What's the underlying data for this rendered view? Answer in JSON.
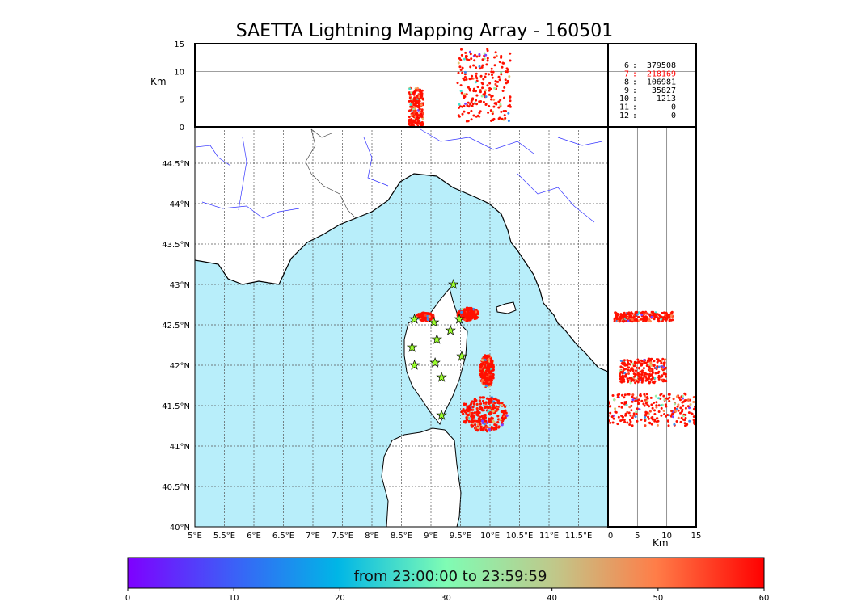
{
  "title": "SAETTA Lightning Mapping Array - 160501",
  "chart_data": {
    "type": "scatter",
    "map": {
      "xlabels": [
        "5°E",
        "5.5°E",
        "6°E",
        "6.5°E",
        "7°E",
        "7.5°E",
        "8°E",
        "8.5°E",
        "9°E",
        "9.5°E",
        "10°E",
        "10.5°E",
        "11°E",
        "11.5°E"
      ],
      "ylabels": [
        "40°N",
        "40.5°N",
        "41°N",
        "41.5°N",
        "42°N",
        "42.5°N",
        "43°N",
        "43.5°N",
        "44°N",
        "44.5°N"
      ],
      "lon_range": [
        5,
        12
      ],
      "lat_range": [
        40,
        44.95
      ],
      "land_color": "#ffffff",
      "sea_color": "#b8eefa",
      "stations": [
        [
          9.38,
          43.0
        ],
        [
          8.72,
          42.57
        ],
        [
          9.05,
          42.53
        ],
        [
          9.48,
          42.57
        ],
        [
          9.33,
          42.43
        ],
        [
          9.1,
          42.32
        ],
        [
          8.68,
          42.22
        ],
        [
          9.52,
          42.11
        ],
        [
          8.72,
          42.0
        ],
        [
          9.07,
          42.03
        ],
        [
          9.18,
          41.85
        ],
        [
          9.18,
          41.38
        ]
      ],
      "clusters": [
        {
          "lon": 8.9,
          "lat": 42.6,
          "rlon": 0.15,
          "rlat": 0.05
        },
        {
          "lon": 9.63,
          "lat": 42.63,
          "rlon": 0.18,
          "rlat": 0.08
        },
        {
          "lon": 9.95,
          "lat": 41.93,
          "rlon": 0.12,
          "rlat": 0.2
        },
        {
          "lon": 9.9,
          "lat": 41.4,
          "rlon": 0.4,
          "rlat": 0.22
        }
      ]
    },
    "altitude_panel": {
      "ylabel": "Km",
      "yticks": [
        "0",
        "5",
        "10",
        "15"
      ],
      "ylim": [
        0,
        15
      ],
      "clusters": [
        {
          "lon": 8.75,
          "alt_min": 0,
          "alt_max": 7
        },
        {
          "lon": 9.9,
          "alt_min": 1,
          "alt_max": 14
        }
      ]
    },
    "latalt_panel": {
      "xlabel": "Km",
      "xticks": [
        "0",
        "5",
        "10",
        "15"
      ],
      "xlim": [
        0,
        15
      ],
      "clusters": [
        {
          "lat": 42.6,
          "alt_min": 1,
          "alt_max": 11
        },
        {
          "lat": 41.93,
          "alt_min": 2,
          "alt_max": 10
        },
        {
          "lat": 41.45,
          "alt_min": 0,
          "alt_max": 15
        }
      ]
    },
    "counts": [
      {
        "n": "6",
        "v": "379508",
        "color": "#000000"
      },
      {
        "n": "7",
        "v": "218169",
        "color": "#ff0000"
      },
      {
        "n": "8",
        "v": "106981",
        "color": "#000000"
      },
      {
        "n": "9",
        "v": "35827",
        "color": "#000000"
      },
      {
        "n": "10",
        "v": "1213",
        "color": "#000000"
      },
      {
        "n": "11",
        "v": "0",
        "color": "#000000"
      },
      {
        "n": "12",
        "v": "0",
        "color": "#000000"
      }
    ],
    "colorbar": {
      "label": "from 23:00:00 to 23:59:59",
      "ticks": [
        "0",
        "10",
        "20",
        "30",
        "40",
        "50",
        "60"
      ],
      "range": [
        0,
        60
      ]
    }
  }
}
